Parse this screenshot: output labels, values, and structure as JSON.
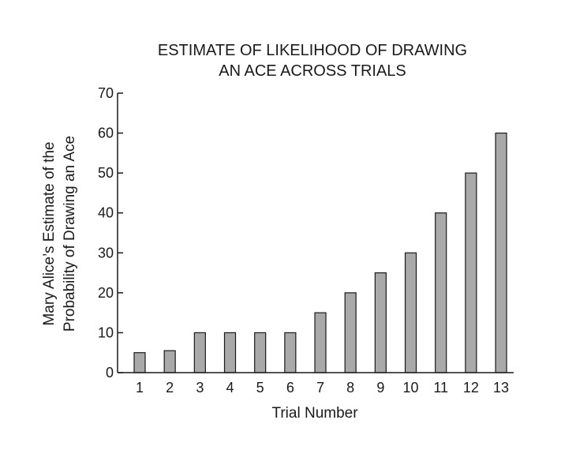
{
  "chart_data": {
    "type": "bar",
    "title_lines": [
      "ESTIMATE OF LIKELIHOOD OF DRAWING",
      "AN ACE ACROSS TRIALS"
    ],
    "xlabel": "Trial Number",
    "ylabel_lines": [
      "Mary Alice’s Estimate of the",
      "Probability of Drawing an Ace"
    ],
    "categories": [
      "1",
      "2",
      "3",
      "4",
      "5",
      "6",
      "7",
      "8",
      "9",
      "10",
      "11",
      "12",
      "13"
    ],
    "values": [
      5,
      5.5,
      10,
      10,
      10,
      10,
      15,
      20,
      25,
      30,
      40,
      50,
      60
    ],
    "ylim": [
      0,
      70
    ],
    "yticks": [
      0,
      10,
      20,
      30,
      40,
      50,
      60,
      70
    ],
    "ytick_labels": [
      "0",
      "10",
      "20",
      "30",
      "40",
      "50",
      "60",
      "70"
    ],
    "grid": false,
    "legend": "none",
    "bar_color": "#a9a9a9",
    "edge_color": "#1a1a1a"
  }
}
